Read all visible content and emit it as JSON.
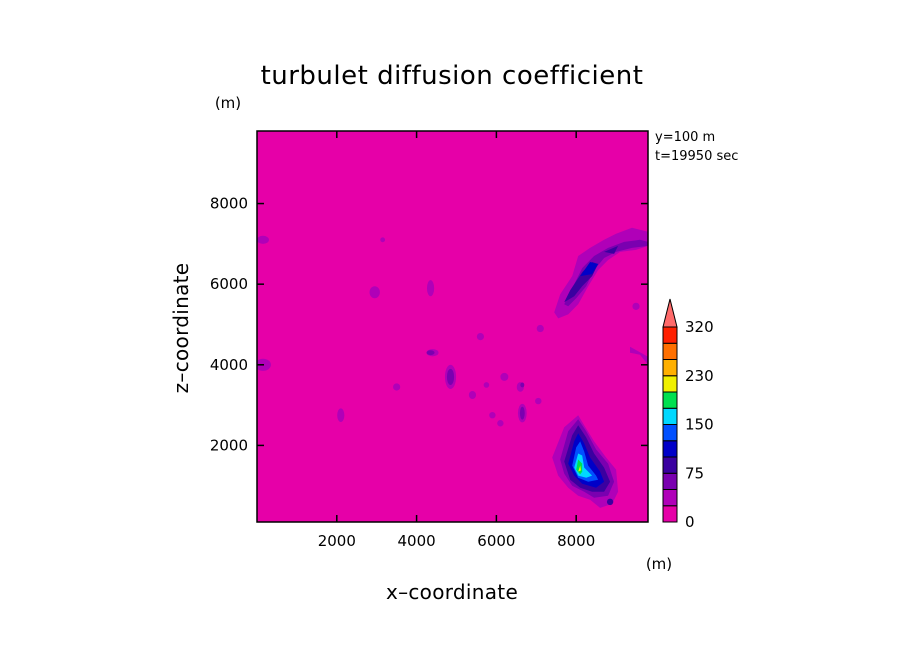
{
  "chart_data": {
    "type": "contour",
    "title": "turbulet diffusion coefficient",
    "xlabel": "x–coordinate",
    "ylabel": "z–coordinate",
    "x_unit": "(m)",
    "y_unit": "(m)",
    "xlim": [
      0,
      9800
    ],
    "ylim": [
      100,
      9800
    ],
    "xticks": [
      "2000",
      "4000",
      "6000",
      "8000"
    ],
    "xtick_values": [
      2000,
      4000,
      6000,
      8000
    ],
    "yticks": [
      "2000",
      "4000",
      "6000",
      "8000"
    ],
    "ytick_values": [
      2000,
      4000,
      6000,
      8000
    ],
    "annotations": [
      "y=100 m",
      "t=19950 sec"
    ],
    "background_level_color": "#e600a8",
    "colorbar": {
      "levels": [
        0,
        25,
        50,
        75,
        100,
        125,
        150,
        180,
        210,
        230,
        260,
        290,
        320
      ],
      "tick_labels": [
        "0",
        "75",
        "150",
        "230",
        "320"
      ],
      "tick_values": [
        0,
        75,
        150,
        230,
        320
      ],
      "colors": [
        "#e600a8",
        "#b000b8",
        "#7a00b0",
        "#3a00a0",
        "#0000c8",
        "#0050ff",
        "#00d8ff",
        "#00e050",
        "#f0f000",
        "#ffb000",
        "#ff7000",
        "#ff2000"
      ],
      "extend_color": "#ff6a6a"
    },
    "regions": [
      {
        "name": "lower-right-maximum",
        "x": [
          7650,
          8000,
          8350,
          8600,
          8900,
          9050,
          8800,
          8500,
          8250,
          7900
        ],
        "z": [
          1500,
          2600,
          2300,
          1700,
          1400,
          900,
          500,
          700,
          800,
          1100
        ],
        "max_level": 230
      },
      {
        "name": "upper-right-plume",
        "x": [
          7500,
          7800,
          8100,
          8500,
          8900,
          9300,
          9700,
          9800,
          9500,
          9000,
          8600,
          8200,
          7900,
          7700
        ],
        "z": [
          5400,
          5900,
          6400,
          6700,
          7100,
          7300,
          7300,
          7000,
          6900,
          6800,
          6500,
          6000,
          5700,
          5300
        ],
        "max_level": 75
      }
    ]
  }
}
